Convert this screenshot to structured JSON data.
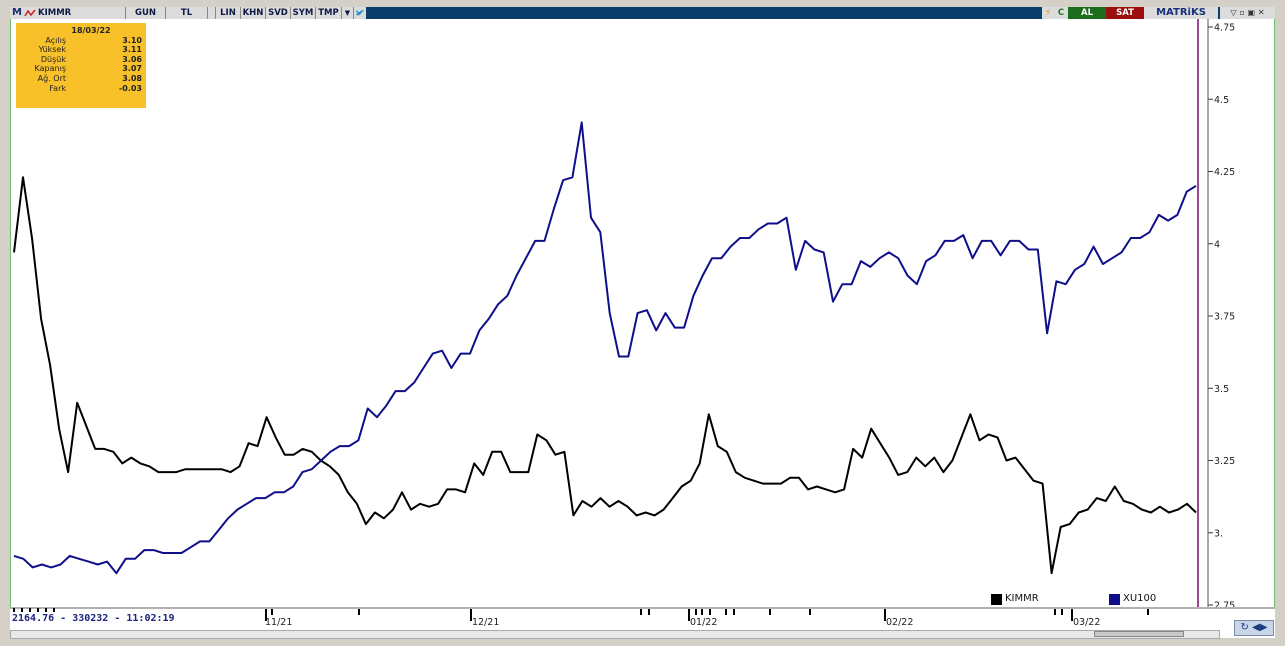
{
  "toolbar": {
    "logo": "M",
    "symbol": "KIMMR",
    "period": "GUN",
    "currency": "TL",
    "buttons": [
      "LIN",
      "KHN",
      "SVD",
      "SYM",
      "TMP"
    ],
    "c_button": "C",
    "buy": "AL",
    "sell": "SAT",
    "brand": "MATRiKS",
    "icons": [
      "lightning-icon",
      "dropdown-icon",
      "twitter-icon",
      "minimize-icon",
      "maximize-icon",
      "close-icon"
    ]
  },
  "info": {
    "date": "18/03/22",
    "rows": [
      {
        "label": "Açılış",
        "value": "3.10"
      },
      {
        "label": "Yüksek",
        "value": "3.11"
      },
      {
        "label": "Düşük",
        "value": "3.06"
      },
      {
        "label": "Kapanış",
        "value": "3.07"
      },
      {
        "label": "Ağ. Ort",
        "value": "3.08"
      },
      {
        "label": "Fark",
        "value": "-0.03"
      }
    ]
  },
  "status": "2164.76 - 330232 - 11:02:19",
  "chart_data": {
    "type": "line",
    "ylim": [
      2.75,
      4.75
    ],
    "yticks": [
      "4.75",
      "4.5",
      "4.25",
      "4",
      "3.75",
      "3.5",
      "3.25",
      "3.",
      "2.75"
    ],
    "xtick_labels": [
      "11/21",
      "12/21",
      "01/22",
      "02/22",
      "03/22"
    ],
    "legend": [
      "KIMMR",
      "XU100"
    ],
    "colors": {
      "KIMMR": "#000000",
      "XU100": "#0f0f8a"
    },
    "series": [
      {
        "name": "KIMMR",
        "values": [
          3.97,
          4.23,
          4.02,
          3.74,
          3.58,
          3.36,
          3.21,
          3.45,
          3.37,
          3.29,
          3.29,
          3.28,
          3.24,
          3.26,
          3.24,
          3.23,
          3.21,
          3.21,
          3.21,
          3.22,
          3.22,
          3.22,
          3.22,
          3.22,
          3.21,
          3.23,
          3.31,
          3.3,
          3.4,
          3.33,
          3.27,
          3.27,
          3.29,
          3.28,
          3.25,
          3.23,
          3.2,
          3.14,
          3.1,
          3.03,
          3.07,
          3.05,
          3.08,
          3.14,
          3.08,
          3.1,
          3.09,
          3.1,
          3.15,
          3.15,
          3.14,
          3.24,
          3.2,
          3.28,
          3.28,
          3.21,
          3.21,
          3.21,
          3.34,
          3.32,
          3.27,
          3.28,
          3.06,
          3.11,
          3.09,
          3.12,
          3.09,
          3.11,
          3.09,
          3.06,
          3.07,
          3.06,
          3.08,
          3.12,
          3.16,
          3.18,
          3.24,
          3.41,
          3.3,
          3.28,
          3.21,
          3.19,
          3.18,
          3.17,
          3.17,
          3.17,
          3.19,
          3.19,
          3.15,
          3.16,
          3.15,
          3.14,
          3.15,
          3.29,
          3.26,
          3.36,
          3.31,
          3.26,
          3.2,
          3.21,
          3.26,
          3.23,
          3.26,
          3.21,
          3.25,
          3.33,
          3.41,
          3.32,
          3.34,
          3.33,
          3.25,
          3.26,
          3.22,
          3.18,
          3.17,
          2.86,
          3.02,
          3.03,
          3.07,
          3.08,
          3.12,
          3.11,
          3.16,
          3.11,
          3.1,
          3.08,
          3.07,
          3.09,
          3.07,
          3.08,
          3.1,
          3.07
        ]
      },
      {
        "name": "XU100",
        "values": [
          2.92,
          2.91,
          2.88,
          2.89,
          2.88,
          2.89,
          2.92,
          2.91,
          2.9,
          2.89,
          2.9,
          2.86,
          2.91,
          2.91,
          2.94,
          2.94,
          2.93,
          2.93,
          2.93,
          2.95,
          2.97,
          2.97,
          3.01,
          3.05,
          3.08,
          3.1,
          3.12,
          3.12,
          3.14,
          3.14,
          3.16,
          3.21,
          3.22,
          3.25,
          3.28,
          3.3,
          3.3,
          3.32,
          3.43,
          3.4,
          3.44,
          3.49,
          3.49,
          3.52,
          3.57,
          3.62,
          3.63,
          3.57,
          3.62,
          3.62,
          3.7,
          3.74,
          3.79,
          3.82,
          3.89,
          3.95,
          4.01,
          4.01,
          4.12,
          4.22,
          4.23,
          4.42,
          4.09,
          4.04,
          3.76,
          3.61,
          3.61,
          3.76,
          3.77,
          3.7,
          3.76,
          3.71,
          3.71,
          3.82,
          3.89,
          3.95,
          3.95,
          3.99,
          4.02,
          4.02,
          4.05,
          4.07,
          4.07,
          4.09,
          3.91,
          4.01,
          3.98,
          3.97,
          3.8,
          3.86,
          3.86,
          3.94,
          3.92,
          3.95,
          3.97,
          3.95,
          3.89,
          3.86,
          3.94,
          3.96,
          4.01,
          4.01,
          4.03,
          3.95,
          4.01,
          4.01,
          3.96,
          4.01,
          4.01,
          3.98,
          3.98,
          3.69,
          3.87,
          3.86,
          3.91,
          3.93,
          3.99,
          3.93,
          3.95,
          3.97,
          4.02,
          4.02,
          4.04,
          4.1,
          4.08,
          4.1,
          4.18,
          4.2
        ]
      }
    ]
  }
}
